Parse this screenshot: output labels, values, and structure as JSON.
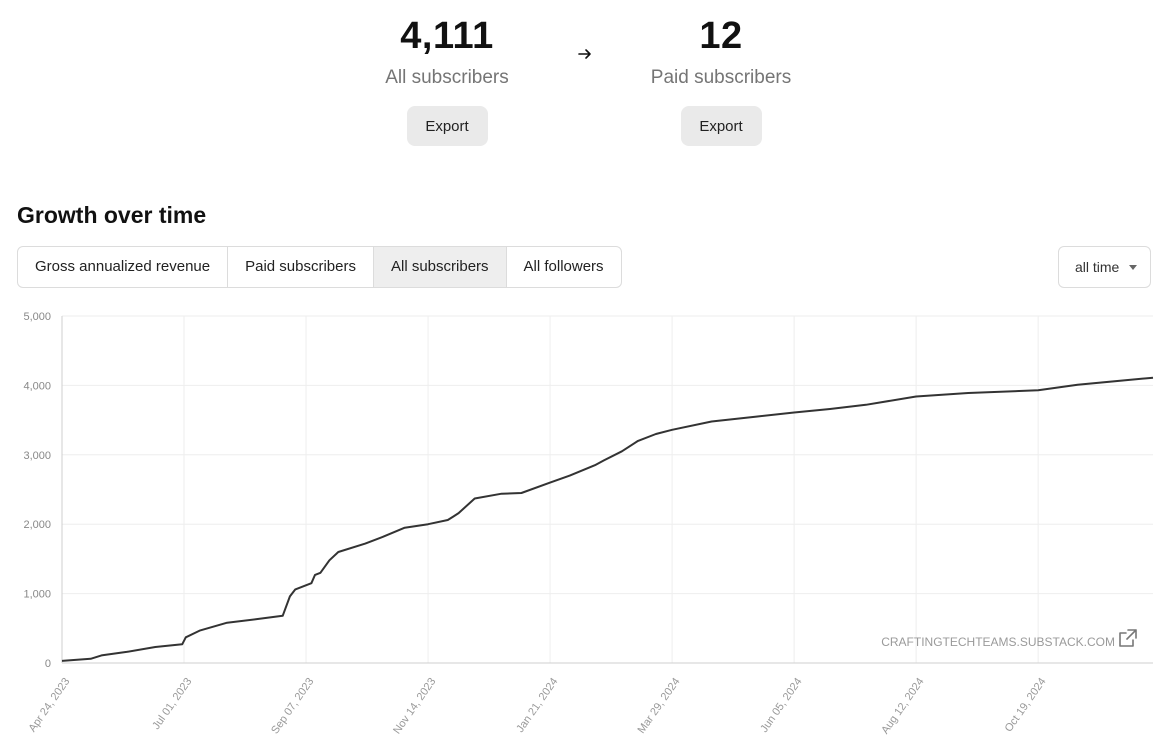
{
  "stats": {
    "all": {
      "value": "4,111",
      "label": "All subscribers",
      "export_label": "Export"
    },
    "paid": {
      "value": "12",
      "label": "Paid subscribers",
      "export_label": "Export"
    }
  },
  "section_title": "Growth over time",
  "tabs": [
    {
      "label": "Gross annualized revenue",
      "active": false
    },
    {
      "label": "Paid subscribers",
      "active": false
    },
    {
      "label": "All subscribers",
      "active": true
    },
    {
      "label": "All followers",
      "active": false
    }
  ],
  "range": {
    "selected": "all time"
  },
  "watermark": "CRAFTINGTECHTEAMS.SUBSTACK.COM",
  "icons": {
    "arrow": "arrow-right-icon",
    "external": "external-link-icon",
    "caret": "caret-down-icon"
  },
  "colors": {
    "line": "#333333",
    "grid": "#eeeeee",
    "muted": "#757575",
    "button_bg": "#eaeaea"
  },
  "chart_data": {
    "type": "line",
    "title": "",
    "xlabel": "",
    "ylabel": "",
    "ylim": [
      0,
      5000
    ],
    "yticks": [
      0,
      1000,
      2000,
      3000,
      4000,
      5000
    ],
    "ytick_labels": [
      "0",
      "1,000",
      "2,000",
      "3,000",
      "4,000",
      "5,000"
    ],
    "xtick_labels": [
      "Apr 24, 2023",
      "Jul 01, 2023",
      "Sep 07, 2023",
      "Nov 14, 2023",
      "Jan 21, 2024",
      "Mar 29, 2024",
      "Jun 05, 2024",
      "Aug 12, 2024",
      "Oct 19, 2024"
    ],
    "xlim": [
      "2023-04-24",
      "2024-12-22"
    ],
    "grid": true,
    "series": [
      {
        "x": [
          "2023-04-24",
          "2023-05-10",
          "2023-05-16",
          "2023-05-30",
          "2023-06-15",
          "2023-06-30",
          "2023-07-02",
          "2023-07-10",
          "2023-07-25",
          "2023-08-10",
          "2023-08-25",
          "2023-08-29",
          "2023-09-01",
          "2023-09-10",
          "2023-09-12",
          "2023-09-15",
          "2023-09-20",
          "2023-09-25",
          "2023-10-10",
          "2023-10-20",
          "2023-11-01",
          "2023-11-14",
          "2023-11-25",
          "2023-11-28",
          "2023-12-01",
          "2023-12-10",
          "2023-12-25",
          "2024-01-05",
          "2024-01-21",
          "2024-02-01",
          "2024-02-15",
          "2024-02-20",
          "2024-03-01",
          "2024-03-10",
          "2024-03-20",
          "2024-03-29",
          "2024-04-20",
          "2024-05-15",
          "2024-06-05",
          "2024-06-25",
          "2024-07-15",
          "2024-08-12",
          "2024-09-10",
          "2024-10-19",
          "2024-11-10",
          "2024-12-22"
        ],
        "y": [
          30,
          60,
          110,
          160,
          230,
          270,
          370,
          470,
          580,
          630,
          680,
          960,
          1060,
          1150,
          1270,
          1300,
          1480,
          1600,
          1720,
          1820,
          1950,
          2000,
          2060,
          2110,
          2160,
          2370,
          2440,
          2450,
          2600,
          2700,
          2850,
          2920,
          3050,
          3200,
          3300,
          3360,
          3480,
          3550,
          3610,
          3660,
          3720,
          3840,
          3890,
          3930,
          4010,
          4111
        ]
      }
    ]
  }
}
